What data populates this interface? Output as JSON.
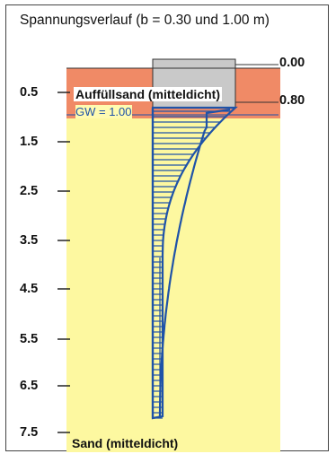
{
  "title": "Spannungsverlauf (b = 0.30 und 1.00 m)",
  "depth_ticks": [
    "0.5",
    "1.5",
    "2.5",
    "3.5",
    "4.5",
    "5.5",
    "6.5",
    "7.5"
  ],
  "levels": [
    "0.00",
    "0.80"
  ],
  "layers": {
    "fill": "Auffüllsand (mitteldicht)",
    "sand": "Sand (mitteldicht)",
    "groundwater": "GW = 1.00"
  },
  "colors": {
    "fill_layer": "#f08a66",
    "foundation": "#c9c9c9",
    "sand_layer": "#fdf8a0",
    "stress_lines": "#1f53a8"
  }
}
